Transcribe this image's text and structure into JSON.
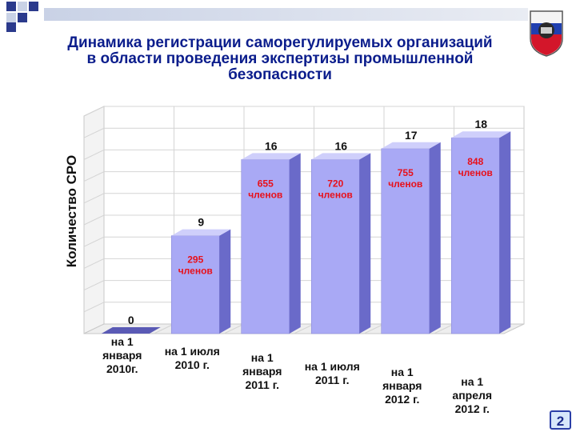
{
  "title_lines": [
    "Динамика регистрации саморегулируемых организаций",
    "в области проведения экспертизы промышленной",
    "безопасности"
  ],
  "page_number": "2",
  "colors": {
    "title": "#0b1d8c",
    "bar_front": "#a9a9f5",
    "bar_side": "#6a6ac9",
    "bar_top": "#cfcffb",
    "member_label": "#e8101a",
    "band": "#c9d2e6",
    "squares": "#2b3a8c"
  },
  "icons": [
    "logo-emblem-icon"
  ],
  "chart_data": {
    "type": "bar",
    "title": "Динамика регистрации саморегулируемых организаций в области проведения экспертизы промышленной безопасности",
    "ylabel": "Количество СРО",
    "xlabel": "",
    "ylim": [
      0,
      20
    ],
    "grid": true,
    "legend": "none",
    "style": "3d",
    "categories": [
      [
        "на 1",
        "января",
        "2010г."
      ],
      [
        "на 1 июля",
        "2010 г."
      ],
      [
        "на 1",
        "января",
        "2011 г."
      ],
      [
        "на 1 июля",
        "2011 г."
      ],
      [
        "на 1",
        "января",
        "2012 г."
      ],
      [
        "на 1",
        "апреля",
        "2012 г."
      ]
    ],
    "values": [
      0,
      9,
      16,
      16,
      17,
      18
    ],
    "member_labels": [
      null,
      [
        "295",
        "членов"
      ],
      [
        "655",
        "членов"
      ],
      [
        "720",
        "членов"
      ],
      [
        "755",
        "членов"
      ],
      [
        "848",
        "членов"
      ]
    ]
  }
}
